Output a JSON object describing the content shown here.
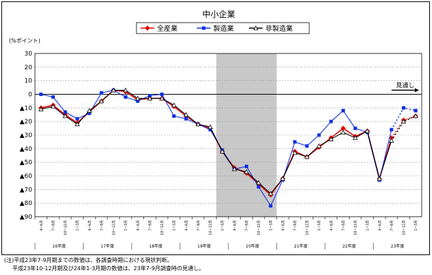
{
  "chart_data": {
    "type": "line",
    "title": "中小企業",
    "ylabel": "(%ポイント)",
    "ylim": [
      -90,
      30
    ],
    "yticks": [
      30,
      20,
      10,
      0,
      -10,
      -20,
      -30,
      -40,
      -50,
      -60,
      -70,
      -80,
      -90
    ],
    "ytick_labels": [
      "30",
      "20",
      "10",
      "0",
      "▲10",
      "▲20",
      "▲30",
      "▲40",
      "▲50",
      "▲60",
      "▲70",
      "▲80",
      "▲90"
    ],
    "x_periods": [
      "4~6月",
      "7~9月",
      "10~12月",
      "1~3月",
      "4~6月",
      "7~9月",
      "10~12月",
      "1~3月",
      "4~6月",
      "7~9月",
      "10~12月",
      "1~3月",
      "4~6月",
      "7~9月",
      "10~12月",
      "1~3月",
      "4~6月",
      "7~9月",
      "10~12月",
      "1~3月",
      "4~6月",
      "7~9月",
      "10~12月",
      "1~3月",
      "4~6月",
      "7~9月",
      "10~12月",
      "1~3月",
      "4~6月",
      "7~9月",
      "10~12月",
      "1~3月"
    ],
    "year_groups": [
      {
        "label": "16年度",
        "start": 0,
        "end": 3
      },
      {
        "label": "17年度",
        "start": 4,
        "end": 7
      },
      {
        "label": "18年度",
        "start": 8,
        "end": 11
      },
      {
        "label": "19年度",
        "start": 12,
        "end": 15
      },
      {
        "label": "20年度",
        "start": 16,
        "end": 19
      },
      {
        "label": "21年度",
        "start": 20,
        "end": 23
      },
      {
        "label": "22年度",
        "start": 24,
        "end": 27
      },
      {
        "label": "23年度",
        "start": 28,
        "end": 31
      }
    ],
    "shaded_range": [
      14.5,
      19.5
    ],
    "forecast_label": "見通し",
    "series": [
      {
        "name": "全産業",
        "color": "#e00000",
        "marker": "diamond",
        "values": [
          -10,
          -8,
          -15,
          -21,
          -13,
          -5,
          3,
          2,
          -4,
          -3,
          -3,
          -9,
          -16,
          -22,
          -25,
          -42,
          -54,
          -58,
          -66,
          -74,
          -62,
          -42,
          -46,
          -39,
          -32,
          -25,
          -31,
          -27,
          -62,
          -32,
          -19,
          -16
        ]
      },
      {
        "name": "製造業",
        "color": "#1030e0",
        "marker": "square",
        "values": [
          0,
          -2,
          -13,
          -18,
          -14,
          1,
          3,
          -2,
          -5,
          -1,
          0,
          -16,
          -18,
          -22,
          -26,
          -41,
          -55,
          -53,
          -68,
          -82,
          -63,
          -35,
          -38,
          -30,
          -20,
          -12,
          -25,
          -28,
          -63,
          -26,
          -10,
          -12
        ]
      },
      {
        "name": "非製造業",
        "color": "#000000",
        "marker": "triangle",
        "values": [
          -11,
          -9,
          -16,
          -22,
          -12,
          -5,
          3,
          3,
          -3,
          -3,
          -3,
          -8,
          -15,
          -22,
          -24,
          -42,
          -55,
          -57,
          -65,
          -73,
          -62,
          -43,
          -46,
          -38,
          -33,
          -28,
          -32,
          -27,
          -62,
          -34,
          -20,
          -16
        ]
      }
    ]
  },
  "notes": [
    "(注)平成23年7-9月期までの数値は、各調査時期における現状判断。",
    "平成23年10-12月期及び24年1-3月期の数値は、23年7-9月調査時の見通し。"
  ]
}
